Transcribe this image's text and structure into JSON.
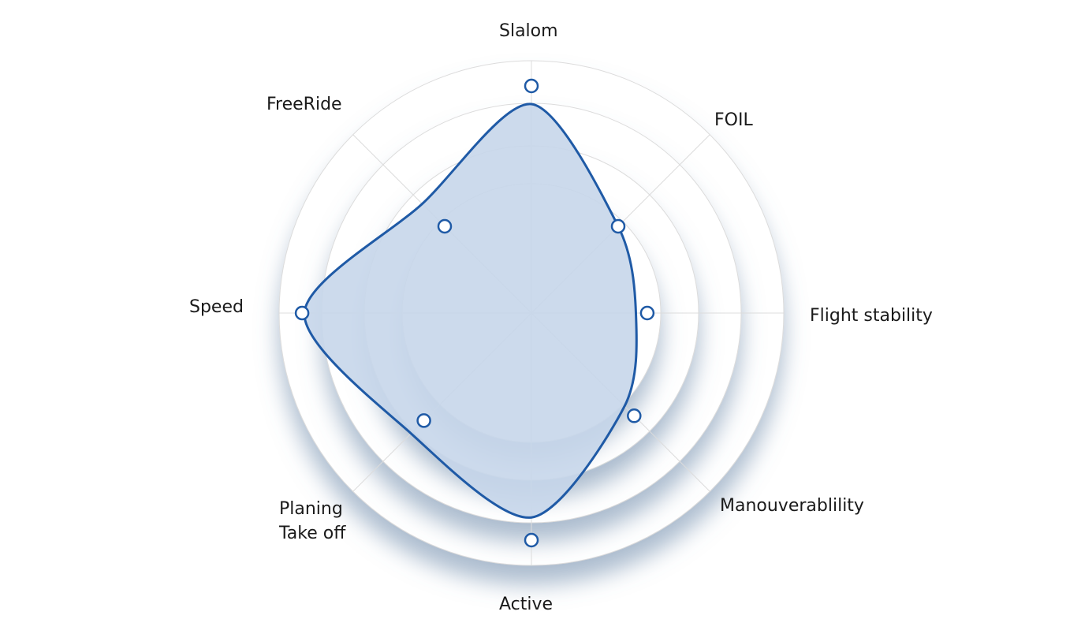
{
  "chart_data": {
    "type": "radar",
    "title": "",
    "axes": [
      {
        "label": "Slalom",
        "value": 92
      },
      {
        "label": "FOIL",
        "value": 54
      },
      {
        "label": "Flight stability",
        "value": 46
      },
      {
        "label": "Manouverablility",
        "value": 58
      },
      {
        "label": "Active",
        "value": 90
      },
      {
        "label": "Planing\nTake off",
        "value": 75
      },
      {
        "label": "Speed",
        "value": 100
      },
      {
        "label": "FreeRide",
        "value": 68
      }
    ],
    "markers": [
      100,
      54,
      51,
      64,
      100,
      67,
      101,
      54
    ],
    "range": [
      0,
      100
    ],
    "grid": true,
    "legend": "none",
    "colors": {
      "line": "#1f5aa6",
      "fill": "#c6d6ea",
      "grid": "#dcdcdc",
      "ring_shadow": "#6b87a8",
      "marker_fill": "#ffffff"
    }
  }
}
